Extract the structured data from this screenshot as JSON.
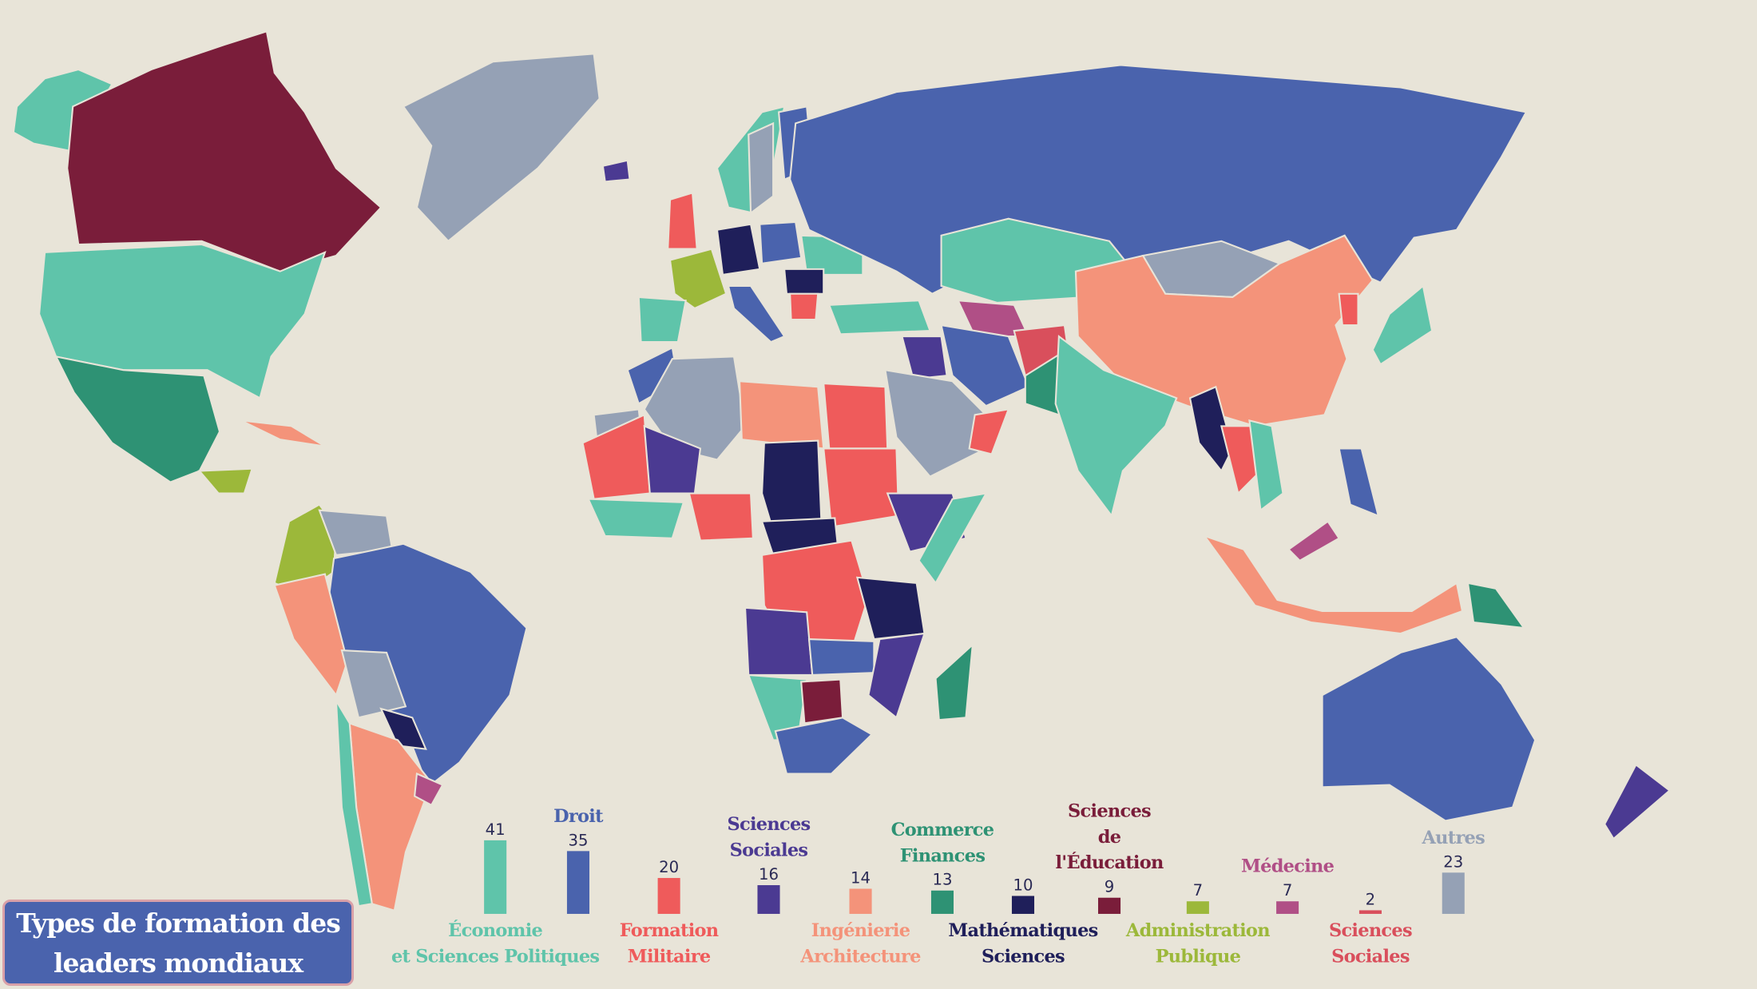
{
  "title": {
    "lines": [
      "Types de formation des",
      "leaders mondiaux"
    ]
  },
  "background_color": "#e8e4d8",
  "chart_data": {
    "type": "bar",
    "title": "Types de formation des leaders mondiaux",
    "categories": [
      {
        "lines": [
          "Économie",
          "et Sciences Politiques"
        ],
        "label_position": "bottom",
        "color": "#5fc4aa"
      },
      {
        "lines": [
          "Droit"
        ],
        "label_position": "top",
        "color": "#4a63ad"
      },
      {
        "lines": [
          "Formation",
          "Militaire"
        ],
        "label_position": "bottom",
        "color": "#ef5b5b"
      },
      {
        "lines": [
          "Sciences",
          "Sociales"
        ],
        "label_position": "top",
        "color": "#4b3a92"
      },
      {
        "lines": [
          "Ingénierie",
          "Architecture"
        ],
        "label_position": "bottom",
        "color": "#f4937a"
      },
      {
        "lines": [
          "Commerce",
          "Finances"
        ],
        "label_position": "top",
        "color": "#2e9274"
      },
      {
        "lines": [
          "Mathématiques",
          "Sciences"
        ],
        "label_position": "bottom",
        "color": "#1f1f5a"
      },
      {
        "lines": [
          "Sciences",
          "de",
          "l'Éducation"
        ],
        "label_position": "top",
        "color": "#7a1d3a"
      },
      {
        "lines": [
          "Administration",
          "Publique"
        ],
        "label_position": "bottom",
        "color": "#9cb83a"
      },
      {
        "lines": [
          "Médecine"
        ],
        "label_position": "top",
        "color": "#b04f86"
      },
      {
        "lines": [
          "Sciences",
          "Sociales"
        ],
        "label_position": "bottom",
        "color": "#d94f5c"
      },
      {
        "lines": [
          "Autres"
        ],
        "label_position": "top",
        "color": "#95a1b5"
      }
    ],
    "values": [
      41,
      35,
      20,
      16,
      14,
      13,
      10,
      9,
      7,
      7,
      2,
      23
    ],
    "xlabel": "",
    "ylabel": "",
    "grid": false
  }
}
